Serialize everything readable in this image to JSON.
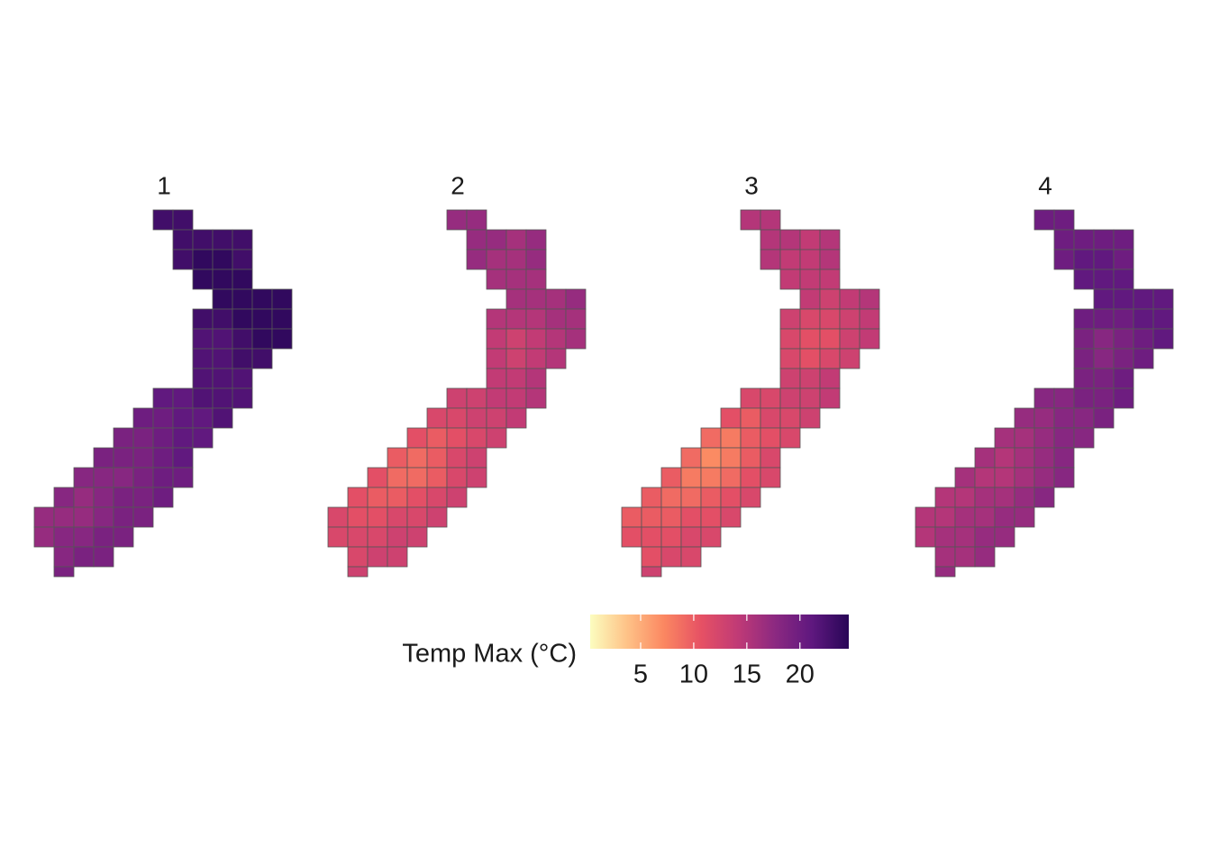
{
  "chart_data": {
    "type": "gridmap",
    "legend_title": "Temp Max (°C)",
    "colorbar": {
      "lim": [
        0.25,
        24.6
      ],
      "ticks": [
        5,
        10,
        15,
        20
      ],
      "colors": [
        "#fcfdbf",
        "#fec287",
        "#fb8761",
        "#e65164",
        "#c03a76",
        "#8c2981",
        "#5f187f",
        "#280657"
      ]
    },
    "panels": [
      {
        "title": "1",
        "values": [
          [
            23,
            23
          ],
          [
            23,
            23,
            23,
            23
          ],
          [
            23,
            24,
            24,
            23
          ],
          [
            24,
            24,
            24
          ],
          [
            24,
            24,
            24,
            24
          ],
          [
            23,
            23,
            24,
            24,
            24
          ],
          [
            22,
            22,
            23,
            24,
            24
          ],
          [
            22,
            22,
            23,
            23
          ],
          [
            22,
            22,
            22
          ],
          [
            21,
            21,
            22,
            22,
            22
          ],
          [
            20,
            20,
            21,
            21,
            22
          ],
          [
            19,
            19,
            20,
            21,
            21
          ],
          [
            19,
            19,
            19,
            20,
            21
          ],
          [
            18,
            18,
            18,
            19,
            20,
            20
          ],
          [
            18,
            17,
            18,
            19,
            19,
            20
          ],
          [
            17,
            17,
            17,
            18,
            19,
            19
          ],
          [
            17,
            18,
            18,
            19,
            19
          ],
          [
            18,
            19,
            19
          ],
          [
            19
          ]
        ]
      },
      {
        "title": "2",
        "values": [
          [
            17,
            17
          ],
          [
            17,
            17,
            16,
            17
          ],
          [
            17,
            16,
            16,
            17
          ],
          [
            16,
            16,
            16
          ],
          [
            16,
            16,
            16,
            17
          ],
          [
            15,
            15,
            15,
            16,
            16
          ],
          [
            14,
            13,
            14,
            15,
            16
          ],
          [
            14,
            13,
            14,
            15
          ],
          [
            14,
            14,
            15
          ],
          [
            13,
            13,
            14,
            14,
            15
          ],
          [
            12,
            12,
            13,
            13,
            14
          ],
          [
            11,
            10,
            11,
            12,
            13
          ],
          [
            10,
            9,
            10,
            12,
            13
          ],
          [
            11,
            9,
            9,
            10,
            12,
            13
          ],
          [
            11,
            10,
            10,
            11,
            12,
            13
          ],
          [
            12,
            11,
            11,
            12,
            12,
            13
          ],
          [
            12,
            12,
            12,
            13,
            13
          ],
          [
            12,
            13,
            13
          ],
          [
            13
          ]
        ]
      },
      {
        "title": "3",
        "values": [
          [
            15,
            15
          ],
          [
            15,
            15,
            14,
            15
          ],
          [
            15,
            14,
            14,
            15
          ],
          [
            14,
            14,
            14
          ],
          [
            14,
            13,
            14,
            15
          ],
          [
            13,
            12,
            12,
            13,
            14
          ],
          [
            12,
            11,
            11,
            13,
            14
          ],
          [
            12,
            11,
            12,
            13
          ],
          [
            13,
            13,
            14
          ],
          [
            12,
            12,
            13,
            13,
            14
          ],
          [
            11,
            10,
            12,
            12,
            13
          ],
          [
            9,
            8,
            10,
            11,
            12
          ],
          [
            9,
            7,
            8,
            10,
            12
          ],
          [
            10,
            8,
            8,
            9,
            11,
            12
          ],
          [
            10,
            9,
            9,
            10,
            11,
            12
          ],
          [
            10,
            10,
            10,
            11,
            11,
            12
          ],
          [
            11,
            11,
            11,
            12,
            12
          ],
          [
            11,
            12,
            12
          ],
          [
            13
          ]
        ]
      },
      {
        "title": "4",
        "values": [
          [
            20,
            20
          ],
          [
            20,
            20,
            20,
            20
          ],
          [
            20,
            21,
            21,
            20
          ],
          [
            21,
            21,
            21
          ],
          [
            21,
            21,
            21,
            21
          ],
          [
            20,
            20,
            20,
            21,
            21
          ],
          [
            19,
            18,
            19,
            20,
            21
          ],
          [
            19,
            18,
            19,
            20
          ],
          [
            19,
            19,
            20
          ],
          [
            18,
            18,
            19,
            19,
            20
          ],
          [
            17,
            17,
            18,
            18,
            19
          ],
          [
            16,
            16,
            17,
            18,
            18
          ],
          [
            16,
            15,
            16,
            17,
            18
          ],
          [
            16,
            15,
            15,
            16,
            17,
            18
          ],
          [
            15,
            15,
            16,
            16,
            17,
            18
          ],
          [
            15,
            15,
            16,
            16,
            17,
            17
          ],
          [
            15,
            16,
            16,
            17,
            17
          ],
          [
            16,
            16,
            17
          ],
          [
            17
          ]
        ]
      }
    ]
  }
}
